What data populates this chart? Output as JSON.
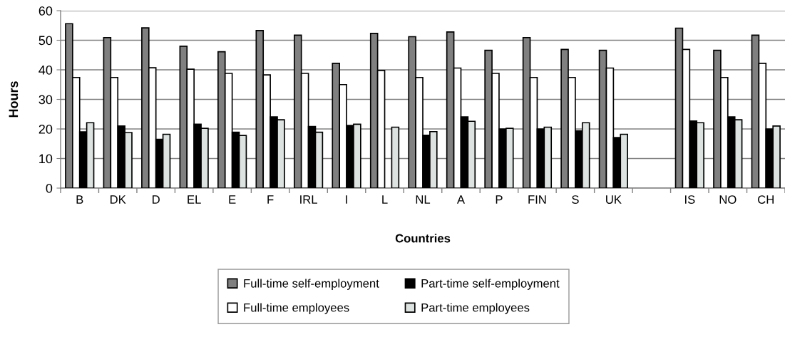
{
  "chart_data": {
    "type": "bar",
    "xlabel": "Countries",
    "ylabel": "Hours",
    "categories": [
      "B",
      "DK",
      "D",
      "EL",
      "E",
      "F",
      "IRL",
      "I",
      "L",
      "NL",
      "A",
      "P",
      "FIN",
      "S",
      "UK",
      null,
      "IS",
      "NO",
      "CH"
    ],
    "series": [
      {
        "name": "Full-time self-employment",
        "color": "#808080",
        "values": [
          55.6,
          50.9,
          54.2,
          48.0,
          46.1,
          53.3,
          51.7,
          42.2,
          52.3,
          51.2,
          52.8,
          46.6,
          50.9,
          46.9,
          46.6,
          null,
          54.1,
          46.6,
          51.7
        ]
      },
      {
        "name": "Full-time employees",
        "color": "#ffffff",
        "values": [
          37.4,
          37.4,
          40.7,
          40.2,
          38.8,
          38.3,
          38.8,
          35.0,
          39.8,
          37.4,
          40.6,
          38.8,
          37.4,
          37.4,
          40.6,
          null,
          46.9,
          37.4,
          42.2
        ]
      },
      {
        "name": "Part-time self-employment",
        "color": "#000000",
        "values": [
          19.0,
          21.0,
          16.5,
          21.6,
          18.9,
          24.1,
          20.8,
          21.2,
          null,
          17.9,
          24.1,
          20.0,
          20.0,
          19.4,
          17.1,
          null,
          22.7,
          24.1,
          20.0
        ]
      },
      {
        "name": "Part-time employees",
        "color": "#dde3e0",
        "values": [
          22.1,
          18.8,
          18.2,
          20.2,
          17.8,
          23.1,
          18.9,
          21.6,
          20.6,
          19.1,
          22.6,
          20.2,
          20.6,
          22.1,
          18.2,
          null,
          22.1,
          23.1,
          21.0
        ]
      }
    ],
    "ylim": [
      0,
      60
    ],
    "yticks": [
      0,
      10,
      20,
      30,
      40,
      50,
      60
    ],
    "grid": "y",
    "legend": "bottom"
  }
}
